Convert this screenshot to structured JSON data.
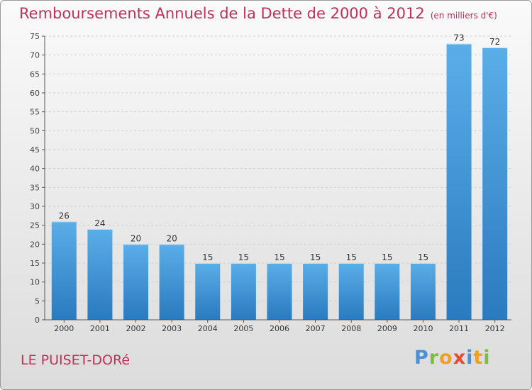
{
  "chart_data": {
    "type": "bar",
    "title": "Remboursements Annuels de la Dette de 2000 à 2012",
    "unit_note": "(en milliers d'€)",
    "categories": [
      "2000",
      "2001",
      "2002",
      "2003",
      "2004",
      "2005",
      "2006",
      "2007",
      "2008",
      "2009",
      "2010",
      "2011",
      "2012"
    ],
    "values": [
      26,
      24,
      20,
      20,
      15,
      15,
      15,
      15,
      15,
      15,
      15,
      73,
      72
    ],
    "ylim": [
      0,
      75
    ],
    "yticks": [
      0,
      5,
      10,
      15,
      20,
      25,
      30,
      35,
      40,
      45,
      50,
      55,
      60,
      65,
      70,
      75
    ],
    "grid": true,
    "bar_color": "#3f92d6"
  },
  "footer": {
    "commune": "LE PUISET-DORé",
    "logo_text": [
      "P",
      "r",
      "o",
      "x",
      "i",
      "t",
      "i"
    ]
  }
}
